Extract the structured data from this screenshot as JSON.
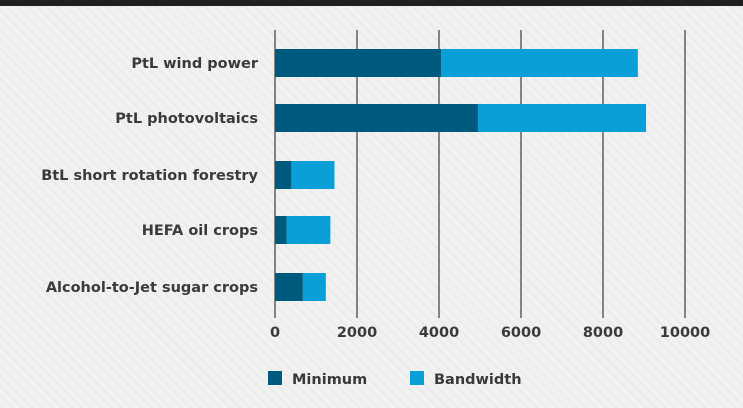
{
  "chart_data": {
    "type": "bar",
    "orientation": "horizontal",
    "stacked": true,
    "title": "",
    "xlabel": "",
    "ylabel": "",
    "xlim": [
      0,
      10000
    ],
    "xticks": [
      0,
      2000,
      4000,
      6000,
      8000,
      10000
    ],
    "categories": [
      "PtL wind power",
      "PtL photovoltaics",
      "BtL short rotation forestry",
      "HEFA oil crops",
      "Alcohol-to-Jet sugar crops"
    ],
    "series": [
      {
        "name": "Minimum",
        "color": "#005a7d",
        "values": [
          4050,
          4950,
          400,
          280,
          680
        ]
      },
      {
        "name": "Bandwidth",
        "color": "#0aa0d7",
        "values": [
          4800,
          4100,
          1050,
          1070,
          560
        ]
      }
    ],
    "grid": "vertical lines at x ticks",
    "legend_position": "bottom",
    "background": "#f2f2f2"
  }
}
